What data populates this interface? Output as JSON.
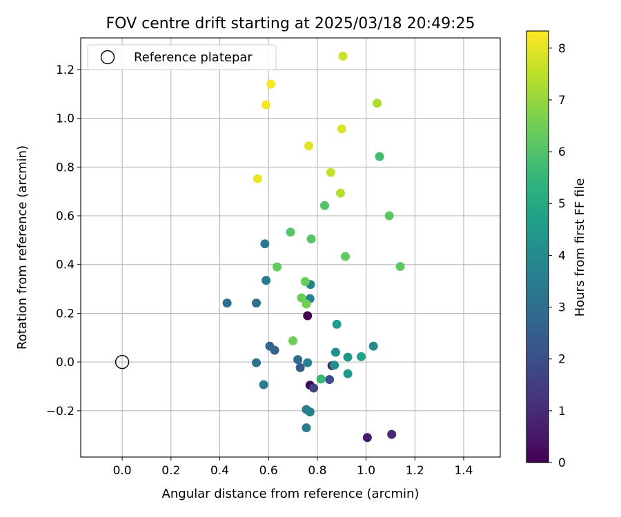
{
  "chart_data": {
    "type": "scatter",
    "title": "FOV centre drift starting at 2025/03/18 20:49:25",
    "xlabel": "Angular distance from reference (arcmin)",
    "ylabel": "Rotation from reference (arcmin)",
    "xlim": [
      -0.17,
      1.55
    ],
    "ylim": [
      -0.39,
      1.33
    ],
    "xticks": [
      0.0,
      0.2,
      0.4,
      0.6,
      0.8,
      1.0,
      1.2,
      1.4
    ],
    "xtick_labels": [
      "0.0",
      "0.2",
      "0.4",
      "0.6",
      "0.8",
      "1.0",
      "1.2",
      "1.4"
    ],
    "yticks": [
      -0.2,
      0.0,
      0.2,
      0.4,
      0.6,
      0.8,
      1.0,
      1.2
    ],
    "ytick_labels": [
      "−0.2",
      "0.0",
      "0.2",
      "0.4",
      "0.6",
      "0.8",
      "1.0",
      "1.2"
    ],
    "grid": true,
    "legend": {
      "position": "top-left",
      "entries": [
        {
          "label": "Reference platepar",
          "marker": "open-circle",
          "color": "#000000"
        }
      ]
    },
    "reference_point": {
      "x": 0.0,
      "y": 0.0
    },
    "colorbar": {
      "label": "Hours from first FF file",
      "colormap": "viridis",
      "range": [
        0,
        8.33
      ],
      "ticks": [
        0,
        1,
        2,
        3,
        4,
        5,
        6,
        7,
        8
      ],
      "tick_labels": [
        "0",
        "1",
        "2",
        "3",
        "4",
        "5",
        "6",
        "7",
        "8"
      ]
    },
    "points": [
      {
        "x": 0.76,
        "y": 0.19,
        "hours": 0.0
      },
      {
        "x": 0.77,
        "y": -0.095,
        "hours": 0.2
      },
      {
        "x": 1.005,
        "y": -0.31,
        "hours": 0.6
      },
      {
        "x": 1.105,
        "y": -0.297,
        "hours": 0.9
      },
      {
        "x": 0.86,
        "y": -0.015,
        "hours": 1.1
      },
      {
        "x": 0.785,
        "y": -0.107,
        "hours": 1.6
      },
      {
        "x": 0.85,
        "y": -0.072,
        "hours": 2.0
      },
      {
        "x": 0.73,
        "y": -0.023,
        "hours": 2.3
      },
      {
        "x": 0.625,
        "y": 0.048,
        "hours": 2.6
      },
      {
        "x": 0.605,
        "y": 0.065,
        "hours": 2.7
      },
      {
        "x": 0.72,
        "y": 0.01,
        "hours": 2.9
      },
      {
        "x": 0.43,
        "y": 0.242,
        "hours": 3.0
      },
      {
        "x": 0.55,
        "y": 0.242,
        "hours": 3.1
      },
      {
        "x": 0.55,
        "y": -0.003,
        "hours": 3.2
      },
      {
        "x": 0.585,
        "y": 0.485,
        "hours": 3.3
      },
      {
        "x": 0.59,
        "y": 0.335,
        "hours": 3.4
      },
      {
        "x": 0.58,
        "y": -0.093,
        "hours": 3.5
      },
      {
        "x": 0.755,
        "y": -0.195,
        "hours": 3.5
      },
      {
        "x": 0.755,
        "y": -0.27,
        "hours": 3.6
      },
      {
        "x": 0.77,
        "y": -0.205,
        "hours": 3.6
      },
      {
        "x": 0.76,
        "y": -0.003,
        "hours": 3.7
      },
      {
        "x": 0.77,
        "y": 0.26,
        "hours": 3.7
      },
      {
        "x": 0.772,
        "y": 0.318,
        "hours": 3.8
      },
      {
        "x": 1.03,
        "y": 0.065,
        "hours": 4.0
      },
      {
        "x": 0.875,
        "y": 0.04,
        "hours": 4.1
      },
      {
        "x": 0.87,
        "y": -0.013,
        "hours": 4.2
      },
      {
        "x": 0.925,
        "y": 0.02,
        "hours": 4.4
      },
      {
        "x": 0.925,
        "y": -0.048,
        "hours": 4.5
      },
      {
        "x": 0.88,
        "y": 0.155,
        "hours": 4.6
      },
      {
        "x": 0.98,
        "y": 0.022,
        "hours": 4.8
      },
      {
        "x": 0.815,
        "y": -0.07,
        "hours": 5.6
      },
      {
        "x": 1.055,
        "y": 0.843,
        "hours": 5.8
      },
      {
        "x": 0.83,
        "y": 0.642,
        "hours": 6.0
      },
      {
        "x": 0.775,
        "y": 0.505,
        "hours": 6.1
      },
      {
        "x": 0.69,
        "y": 0.533,
        "hours": 6.1
      },
      {
        "x": 1.095,
        "y": 0.6,
        "hours": 6.2
      },
      {
        "x": 1.14,
        "y": 0.392,
        "hours": 6.2
      },
      {
        "x": 0.915,
        "y": 0.433,
        "hours": 6.3
      },
      {
        "x": 0.635,
        "y": 0.39,
        "hours": 6.3
      },
      {
        "x": 0.735,
        "y": 0.263,
        "hours": 6.4
      },
      {
        "x": 0.75,
        "y": 0.33,
        "hours": 6.4
      },
      {
        "x": 0.755,
        "y": 0.238,
        "hours": 6.5
      },
      {
        "x": 0.7,
        "y": 0.087,
        "hours": 6.5
      },
      {
        "x": 0.895,
        "y": 0.693,
        "hours": 7.4
      },
      {
        "x": 1.045,
        "y": 1.062,
        "hours": 7.3
      },
      {
        "x": 0.855,
        "y": 0.778,
        "hours": 7.6
      },
      {
        "x": 0.905,
        "y": 1.255,
        "hours": 7.7
      },
      {
        "x": 0.9,
        "y": 0.957,
        "hours": 7.9
      },
      {
        "x": 0.765,
        "y": 0.887,
        "hours": 8.0
      },
      {
        "x": 0.555,
        "y": 0.752,
        "hours": 8.1
      },
      {
        "x": 0.59,
        "y": 1.055,
        "hours": 8.2
      },
      {
        "x": 0.61,
        "y": 1.14,
        "hours": 8.3
      }
    ]
  }
}
